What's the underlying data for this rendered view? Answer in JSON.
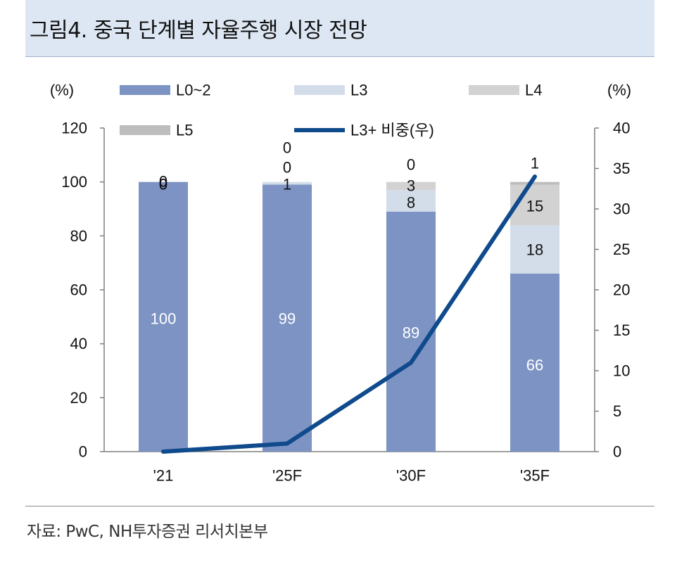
{
  "title": "그림4. 중국 단계별 자율주행 시장 전망",
  "source": "자료: PwC, NH투자증권 리서치본부",
  "colors": {
    "l0_2": "#7d93c4",
    "l3": "#d3dde9",
    "l4": "#d2d2d2",
    "l5": "#bdbdbd",
    "line": "#0f4a8c",
    "title_bg": "#dde7f3"
  },
  "chart_data": {
    "type": "bar",
    "stacked": true,
    "categories": [
      "'21",
      "'25F",
      "'30F",
      "'35F"
    ],
    "series": [
      {
        "name": "L0~2",
        "values": [
          100,
          99,
          89,
          66
        ],
        "axis": "left"
      },
      {
        "name": "L3",
        "values": [
          0,
          1,
          8,
          18
        ],
        "axis": "left"
      },
      {
        "name": "L4",
        "values": [
          0,
          0,
          3,
          15
        ],
        "axis": "left"
      },
      {
        "name": "L5",
        "values": [
          0,
          0,
          0,
          1
        ],
        "axis": "left"
      },
      {
        "name": "L3+ 비중(우)",
        "type": "line",
        "values": [
          0,
          1,
          11,
          34
        ],
        "axis": "right"
      }
    ],
    "left_axis": {
      "label": "(%)",
      "min": 0,
      "max": 120,
      "ticks": [
        0,
        20,
        40,
        60,
        80,
        100,
        120
      ]
    },
    "right_axis": {
      "label": "(%)",
      "min": 0,
      "max": 40,
      "ticks": [
        0,
        5,
        10,
        15,
        20,
        25,
        30,
        35,
        40
      ]
    },
    "bar_labels": [
      {
        "category": "'21",
        "labels": [
          [
            "0"
          ],
          [
            "0"
          ],
          [
            "0"
          ],
          [
            "100"
          ]
        ]
      },
      {
        "category": "'25F",
        "labels": [
          [
            "0"
          ],
          [
            "0"
          ],
          [
            "1"
          ],
          [
            "99"
          ]
        ]
      },
      {
        "category": "'30F",
        "labels": [
          [
            "0"
          ],
          [
            "3"
          ],
          [
            "8"
          ],
          [
            "89"
          ]
        ]
      },
      {
        "category": "'35F",
        "labels": [
          [
            "1"
          ],
          [
            "15"
          ],
          [
            "18"
          ],
          [
            "66"
          ]
        ]
      }
    ],
    "legend": [
      "L0~2",
      "L3",
      "L4",
      "L5",
      "L3+ 비중(우)"
    ]
  }
}
